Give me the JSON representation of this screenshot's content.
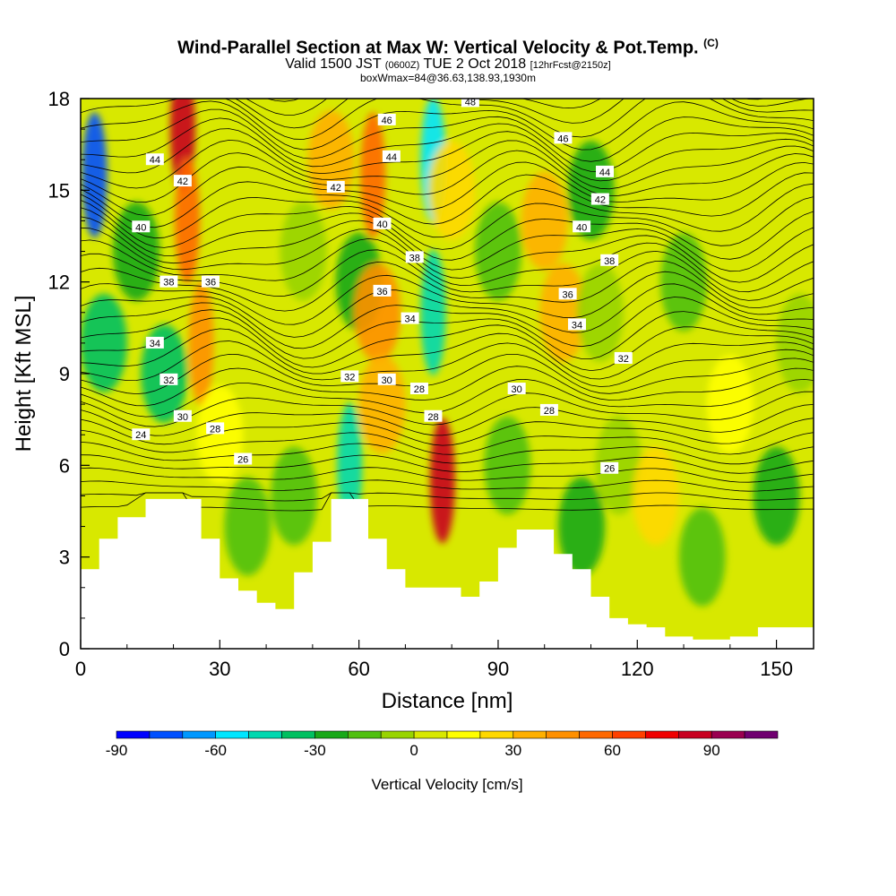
{
  "header": {
    "title": "Wind-Parallel Section at Max W: Vertical Velocity & Pot.Temp.",
    "title_mark": "(C)",
    "valid_prefix": "Valid 1500 JST",
    "valid_utc": "(0600Z)",
    "valid_date": "TUE 2 Oct 2018",
    "forecast": "[12hrFcst@2150z]",
    "box_info": "boxWmax=84@36.63,138.93,1930m"
  },
  "chart_data": {
    "type": "heatmap",
    "title": "Wind-Parallel Section at Max W: Vertical Velocity & Pot.Temp.",
    "xlabel": "Distance [nm]",
    "ylabel": "Height [Kft MSL]",
    "xlim": [
      0,
      158
    ],
    "ylim": [
      0,
      18
    ],
    "x_ticks": [
      0,
      30,
      60,
      90,
      120,
      150
    ],
    "y_ticks": [
      0,
      3,
      6,
      9,
      12,
      15,
      18
    ],
    "colorbar": {
      "label": "Vertical Velocity [cm/s]",
      "min": -90,
      "max": 110,
      "step": 10,
      "tick_values": [
        -90,
        -60,
        -30,
        0,
        30,
        60,
        90
      ],
      "colors": [
        "#0000ff",
        "#0050ff",
        "#0098ff",
        "#00e6ff",
        "#00d8b0",
        "#00c060",
        "#18a818",
        "#50c010",
        "#98d400",
        "#d8e800",
        "#ffff00",
        "#ffd800",
        "#ffb000",
        "#ff9000",
        "#ff6800",
        "#ff4000",
        "#f00000",
        "#c80020",
        "#9a0050",
        "#700070"
      ]
    },
    "velocity_cells": [
      {
        "x": 3,
        "z": 15.5,
        "w": -75
      },
      {
        "x": 5,
        "z": 10,
        "w": -35
      },
      {
        "x": 12,
        "z": 13,
        "w": -25
      },
      {
        "x": 18,
        "z": 9,
        "w": -35
      },
      {
        "x": 22,
        "z": 17,
        "w": 85
      },
      {
        "x": 23,
        "z": 14,
        "w": 50
      },
      {
        "x": 26,
        "z": 10,
        "w": 45
      },
      {
        "x": 30,
        "z": 7,
        "w": 15
      },
      {
        "x": 36,
        "z": 4,
        "w": -20
      },
      {
        "x": 46,
        "z": 5,
        "w": -20
      },
      {
        "x": 48,
        "z": 13,
        "w": -10
      },
      {
        "x": 54,
        "z": 16,
        "w": 30
      },
      {
        "x": 58,
        "z": 6,
        "w": -45
      },
      {
        "x": 60,
        "z": 12,
        "w": -30
      },
      {
        "x": 63,
        "z": 15.5,
        "w": 50
      },
      {
        "x": 64,
        "z": 11,
        "w": 40
      },
      {
        "x": 65,
        "z": 8,
        "w": 35
      },
      {
        "x": 76,
        "z": 16,
        "w": -60
      },
      {
        "x": 76,
        "z": 11,
        "w": -45
      },
      {
        "x": 78,
        "z": 5.5,
        "w": 84
      },
      {
        "x": 80,
        "z": 15,
        "w": 25
      },
      {
        "x": 90,
        "z": 13,
        "w": -20
      },
      {
        "x": 92,
        "z": 6,
        "w": -15
      },
      {
        "x": 100,
        "z": 14,
        "w": 30
      },
      {
        "x": 104,
        "z": 11,
        "w": 35
      },
      {
        "x": 110,
        "z": 15,
        "w": -30
      },
      {
        "x": 112,
        "z": 11,
        "w": -10
      },
      {
        "x": 108,
        "z": 4,
        "w": -30
      },
      {
        "x": 116,
        "z": 6,
        "w": -10
      },
      {
        "x": 124,
        "z": 5,
        "w": 25
      },
      {
        "x": 130,
        "z": 12,
        "w": -20
      },
      {
        "x": 134,
        "z": 3,
        "w": -15
      },
      {
        "x": 140,
        "z": 8,
        "w": 10
      },
      {
        "x": 146,
        "z": 15,
        "w": 5
      },
      {
        "x": 150,
        "z": 5,
        "w": -25
      },
      {
        "x": 155,
        "z": 10,
        "w": -5
      }
    ],
    "terrain_kft": [
      [
        0,
        2.6
      ],
      [
        4,
        3.6
      ],
      [
        8,
        4.3
      ],
      [
        14,
        4.9
      ],
      [
        22,
        4.9
      ],
      [
        26,
        3.6
      ],
      [
        30,
        2.3
      ],
      [
        34,
        1.9
      ],
      [
        38,
        1.5
      ],
      [
        42,
        1.3
      ],
      [
        46,
        2.5
      ],
      [
        50,
        3.5
      ],
      [
        54,
        4.9
      ],
      [
        58,
        4.9
      ],
      [
        62,
        3.6
      ],
      [
        66,
        2.6
      ],
      [
        70,
        2.0
      ],
      [
        74,
        2.0
      ],
      [
        78,
        2.0
      ],
      [
        82,
        1.7
      ],
      [
        86,
        2.2
      ],
      [
        90,
        3.3
      ],
      [
        94,
        3.9
      ],
      [
        98,
        3.9
      ],
      [
        102,
        3.1
      ],
      [
        106,
        2.6
      ],
      [
        110,
        1.7
      ],
      [
        114,
        1.0
      ],
      [
        118,
        0.8
      ],
      [
        122,
        0.7
      ],
      [
        126,
        0.4
      ],
      [
        132,
        0.3
      ],
      [
        140,
        0.4
      ],
      [
        146,
        0.7
      ],
      [
        152,
        0.7
      ],
      [
        158,
        0.4
      ]
    ],
    "theta_labels": [
      {
        "label": "44",
        "x": 16,
        "z": 16.0
      },
      {
        "label": "42",
        "x": 22,
        "z": 15.3
      },
      {
        "label": "40",
        "x": 13,
        "z": 13.8
      },
      {
        "label": "38",
        "x": 19,
        "z": 12.0
      },
      {
        "label": "36",
        "x": 28,
        "z": 12.0
      },
      {
        "label": "34",
        "x": 16,
        "z": 10.0
      },
      {
        "label": "32",
        "x": 19,
        "z": 8.8
      },
      {
        "label": "30",
        "x": 22,
        "z": 7.6
      },
      {
        "label": "28",
        "x": 29,
        "z": 7.2
      },
      {
        "label": "24",
        "x": 13,
        "z": 7.0
      },
      {
        "label": "26",
        "x": 35,
        "z": 6.2
      },
      {
        "label": "46",
        "x": 66,
        "z": 17.3
      },
      {
        "label": "48",
        "x": 84,
        "z": 17.9
      },
      {
        "label": "44",
        "x": 67,
        "z": 16.1
      },
      {
        "label": "46",
        "x": 104,
        "z": 16.7
      },
      {
        "label": "42",
        "x": 55,
        "z": 15.1
      },
      {
        "label": "44",
        "x": 113,
        "z": 15.6
      },
      {
        "label": "42",
        "x": 112,
        "z": 14.7
      },
      {
        "label": "40",
        "x": 65,
        "z": 13.9
      },
      {
        "label": "40",
        "x": 108,
        "z": 13.8
      },
      {
        "label": "38",
        "x": 72,
        "z": 12.8
      },
      {
        "label": "38",
        "x": 114,
        "z": 12.7
      },
      {
        "label": "36",
        "x": 65,
        "z": 11.7
      },
      {
        "label": "36",
        "x": 105,
        "z": 11.6
      },
      {
        "label": "34",
        "x": 71,
        "z": 10.8
      },
      {
        "label": "34",
        "x": 107,
        "z": 10.6
      },
      {
        "label": "32",
        "x": 58,
        "z": 8.9
      },
      {
        "label": "30",
        "x": 66,
        "z": 8.8
      },
      {
        "label": "32",
        "x": 117,
        "z": 9.5
      },
      {
        "label": "28",
        "x": 73,
        "z": 8.5
      },
      {
        "label": "30",
        "x": 94,
        "z": 8.5
      },
      {
        "label": "28",
        "x": 76,
        "z": 7.6
      },
      {
        "label": "28",
        "x": 101,
        "z": 7.8
      },
      {
        "label": "26",
        "x": 114,
        "z": 5.9
      }
    ]
  }
}
